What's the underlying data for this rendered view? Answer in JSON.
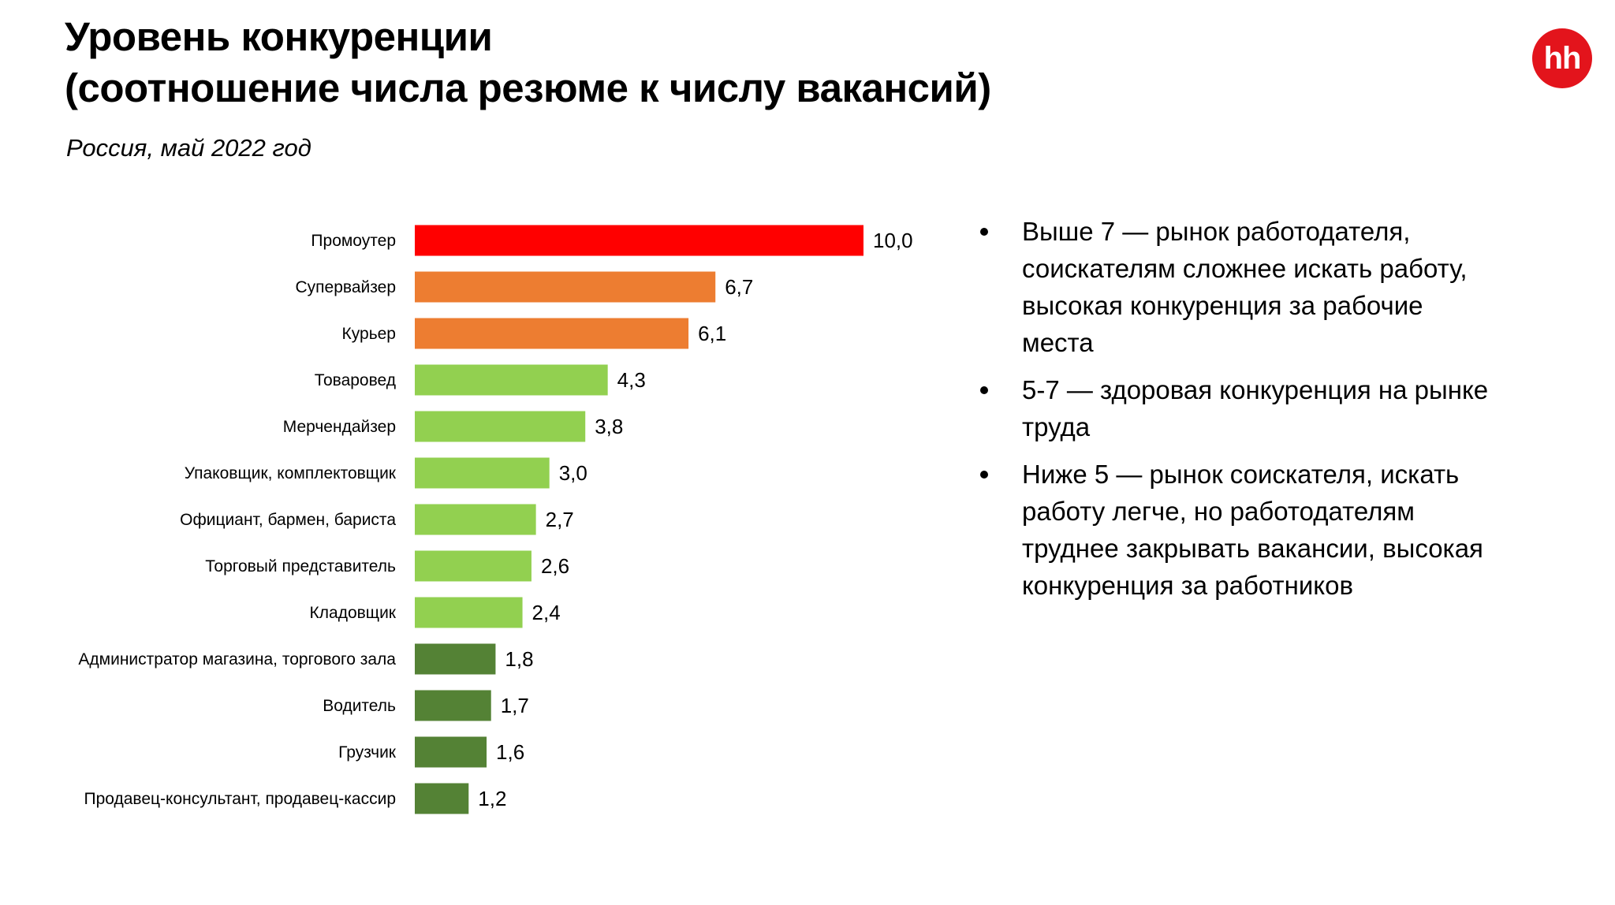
{
  "header": {
    "title_line1": "Уровень конкуренции",
    "title_line2": "(соотношение числа резюме к числу вакансий)",
    "subtitle": "Россия, май 2022 год"
  },
  "logo": {
    "text": "hh",
    "icon": "hh-logo-icon",
    "color": "#E3141C"
  },
  "chart_data": {
    "type": "bar",
    "orientation": "horizontal",
    "title": "",
    "xlabel": "",
    "ylabel": "",
    "xlim": [
      0,
      10
    ],
    "grid": false,
    "legend": "none",
    "categories": [
      "Промоутер",
      "Супервайзер",
      "Курьер",
      "Товаровед",
      "Мерчендайзер",
      "Упаковщик, комплектовщик",
      "Официант, бармен, бариста",
      "Торговый представитель",
      "Кладовщик",
      "Администратор магазина, торгового зала",
      "Водитель",
      "Грузчик",
      "Продавец-консультант, продавец-кассир"
    ],
    "values": [
      10.0,
      6.7,
      6.1,
      4.3,
      3.8,
      3.0,
      2.7,
      2.6,
      2.4,
      1.8,
      1.7,
      1.6,
      1.2
    ],
    "value_labels": [
      "10,0",
      "6,7",
      "6,1",
      "4,3",
      "3,8",
      "3,0",
      "2,7",
      "2,6",
      "2,4",
      "1,8",
      "1,7",
      "1,6",
      "1,2"
    ],
    "bar_colors": [
      "#FF0000",
      "#ED7D31",
      "#ED7D31",
      "#92D050",
      "#92D050",
      "#92D050",
      "#92D050",
      "#92D050",
      "#92D050",
      "#548235",
      "#548235",
      "#548235",
      "#548235"
    ]
  },
  "notes": [
    "Выше 7 — рынок работодателя, соискателям сложнее искать работу, высокая конкуренция за рабочие места",
    "5-7 — здоровая конкуренция на рынке труда",
    "Ниже 5 — рынок соискателя, искать работу легче, но работодателям труднее закрывать вакансии, высокая конкуренция за работников"
  ]
}
